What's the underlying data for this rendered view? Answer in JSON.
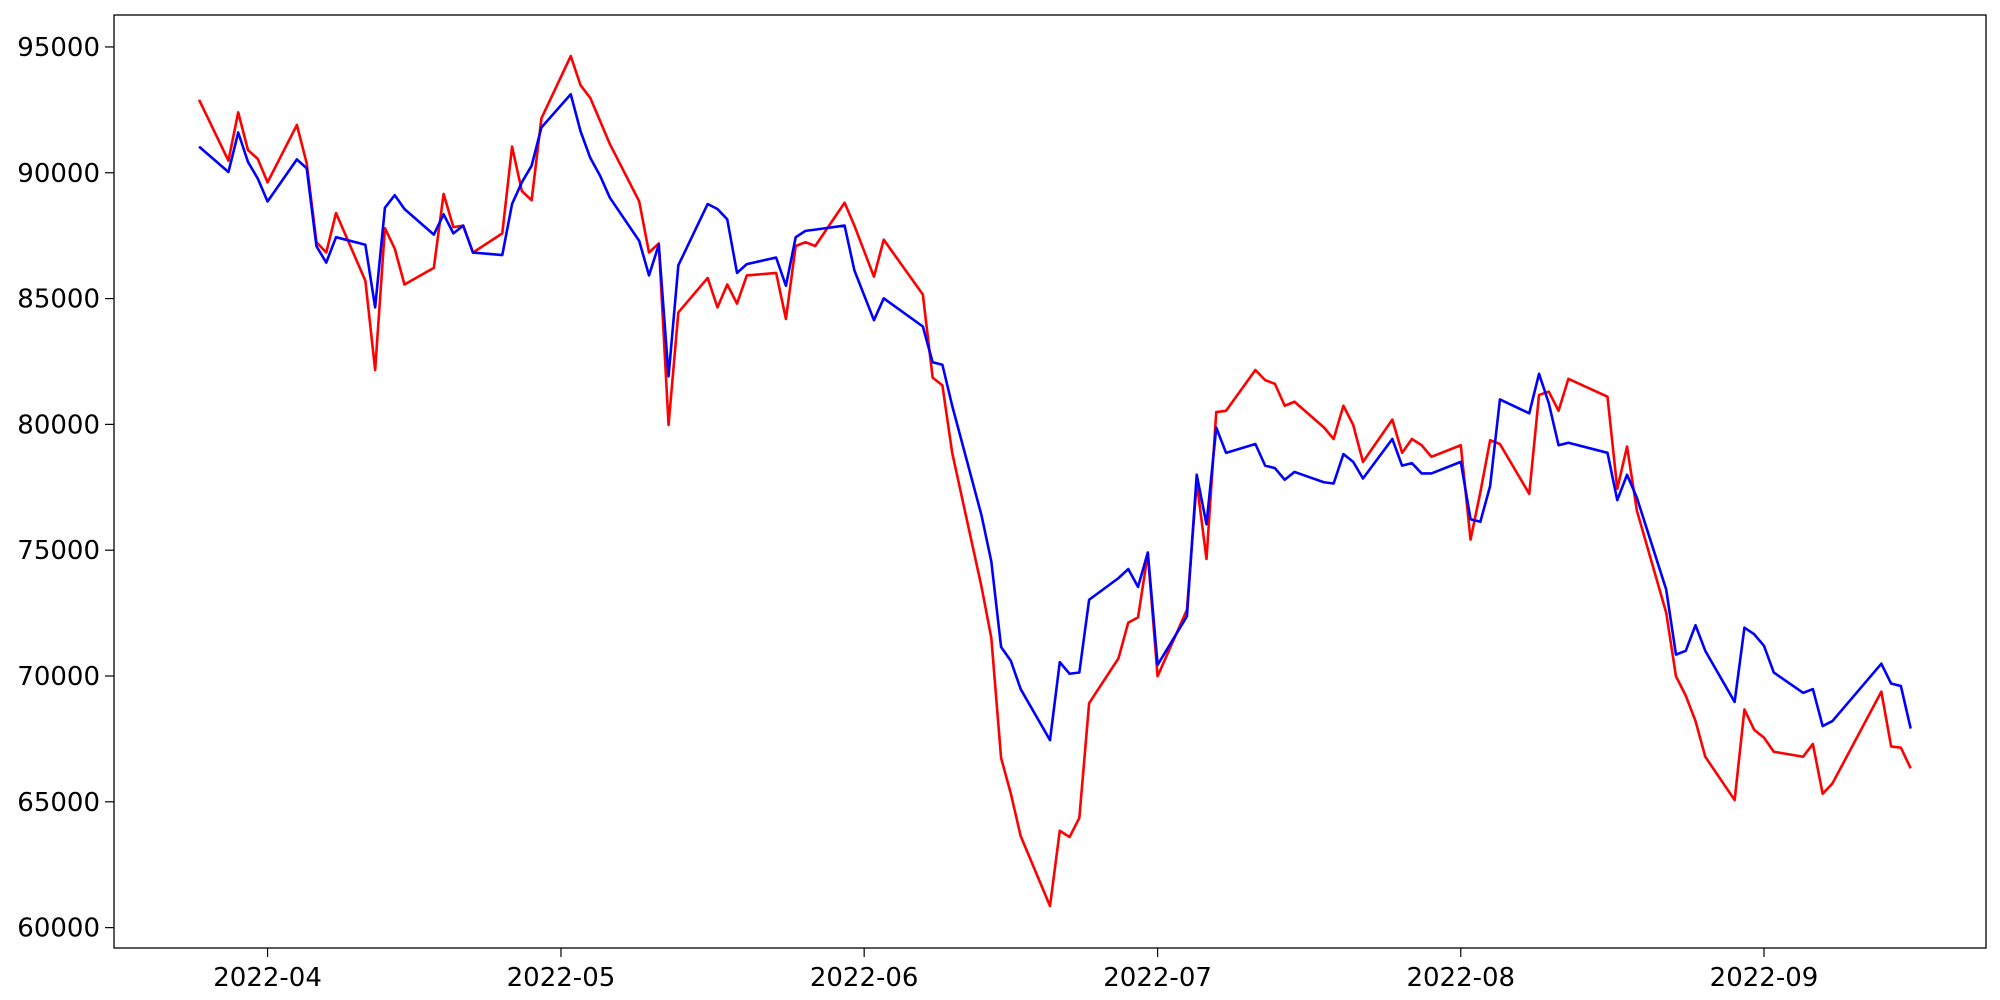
{
  "chart_data": {
    "type": "line",
    "x": [
      83,
      86,
      87,
      88,
      89,
      90,
      93,
      94,
      95,
      96,
      97,
      100,
      101,
      102,
      103,
      104,
      107,
      108,
      109,
      110,
      111,
      114,
      115,
      116,
      117,
      118,
      121,
      122,
      123,
      124,
      125,
      128,
      129,
      130,
      131,
      132,
      135,
      136,
      137,
      138,
      139,
      142,
      143,
      144,
      145,
      146,
      149,
      150,
      152,
      153,
      157,
      158,
      159,
      160,
      163,
      164,
      165,
      166,
      167,
      170,
      171,
      172,
      173,
      174,
      177,
      178,
      179,
      180,
      181,
      184,
      185,
      186,
      187,
      188,
      191,
      192,
      193,
      194,
      195,
      198,
      199,
      200,
      201,
      202,
      205,
      206,
      207,
      208,
      209,
      212,
      213,
      214,
      215,
      216,
      219,
      220,
      221,
      222,
      223,
      227,
      228,
      229,
      230,
      233,
      234,
      235,
      236,
      237,
      240,
      241,
      242,
      243,
      244,
      247,
      248,
      249,
      250,
      255,
      256,
      257,
      258
    ],
    "series": [
      {
        "color": "#ff0000",
        "values": [
          92900,
          90480,
          92400,
          90900,
          90550,
          89620,
          91900,
          90380,
          87240,
          86830,
          88400,
          85710,
          82160,
          87800,
          86990,
          85560,
          86220,
          89160,
          87840,
          87900,
          86830,
          87590,
          91040,
          89270,
          88910,
          92160,
          94640,
          93480,
          92970,
          92060,
          91140,
          88860,
          86830,
          87190,
          79980,
          84450,
          85820,
          84650,
          85560,
          84800,
          85920,
          86020,
          84190,
          87090,
          87240,
          87090,
          88810,
          87900,
          85870,
          87340,
          85160,
          81860,
          81550,
          78870,
          73540,
          71510,
          66740,
          65320,
          63640,
          60860,
          63850,
          63600,
          64360,
          68920,
          70700,
          72120,
          72330,
          74860,
          69990,
          72630,
          77700,
          74650,
          80490,
          80540,
          82160,
          81760,
          81610,
          80740,
          80900,
          79880,
          79420,
          80740,
          79980,
          78510,
          80190,
          78870,
          79420,
          79170,
          78710,
          79170,
          75420,
          77300,
          79370,
          79220,
          77240,
          81170,
          81300,
          80540,
          81810,
          81100,
          77440,
          79120,
          76580,
          72520,
          69990,
          69220,
          68210,
          66790,
          65070,
          68670,
          67860,
          67550,
          66990,
          66790,
          67300,
          65320,
          65730,
          69380,
          67200,
          67150,
          66330
        ]
      },
      {
        "color": "#0000ff",
        "values": [
          91040,
          90030,
          91600,
          90430,
          89770,
          88860,
          90530,
          90180,
          87080,
          86430,
          87440,
          87140,
          84650,
          88610,
          89110,
          88560,
          87540,
          88350,
          87590,
          87900,
          86830,
          86730,
          88760,
          89620,
          90280,
          91800,
          93120,
          91650,
          90590,
          89880,
          89010,
          87290,
          85920,
          87140,
          81910,
          86320,
          88760,
          88560,
          88150,
          86020,
          86370,
          86630,
          85510,
          87440,
          87690,
          87740,
          87900,
          86120,
          84140,
          85010,
          83890,
          82470,
          82370,
          80740,
          76380,
          74550,
          71150,
          70600,
          69480,
          67450,
          70550,
          70090,
          70140,
          73030,
          73890,
          74250,
          73540,
          74910,
          70440,
          72370,
          78000,
          76030,
          79870,
          78870,
          79220,
          78360,
          78260,
          77800,
          78110,
          77700,
          77650,
          78820,
          78510,
          77850,
          79420,
          78360,
          78460,
          78050,
          78050,
          78510,
          76230,
          76130,
          77550,
          80990,
          80440,
          82010,
          80840,
          79170,
          79270,
          78870,
          76990,
          78000,
          77090,
          73440,
          70850,
          71000,
          72020,
          71000,
          68970,
          71920,
          71660,
          71200,
          70140,
          69330,
          69480,
          68010,
          68210,
          70490,
          69700,
          69600,
          67910
        ]
      }
    ],
    "xlim": [
      74.3,
      265.7
    ],
    "xticks": [
      {
        "value": 90,
        "label": "2022-04"
      },
      {
        "value": 120,
        "label": "2022-05"
      },
      {
        "value": 151,
        "label": "2022-06"
      },
      {
        "value": 181,
        "label": "2022-07"
      },
      {
        "value": 212,
        "label": "2022-08"
      },
      {
        "value": 243,
        "label": "2022-09"
      }
    ],
    "ylim": [
      59190,
      96270
    ],
    "yticks": [
      60000,
      65000,
      70000,
      75000,
      80000,
      85000,
      90000,
      95000
    ]
  }
}
